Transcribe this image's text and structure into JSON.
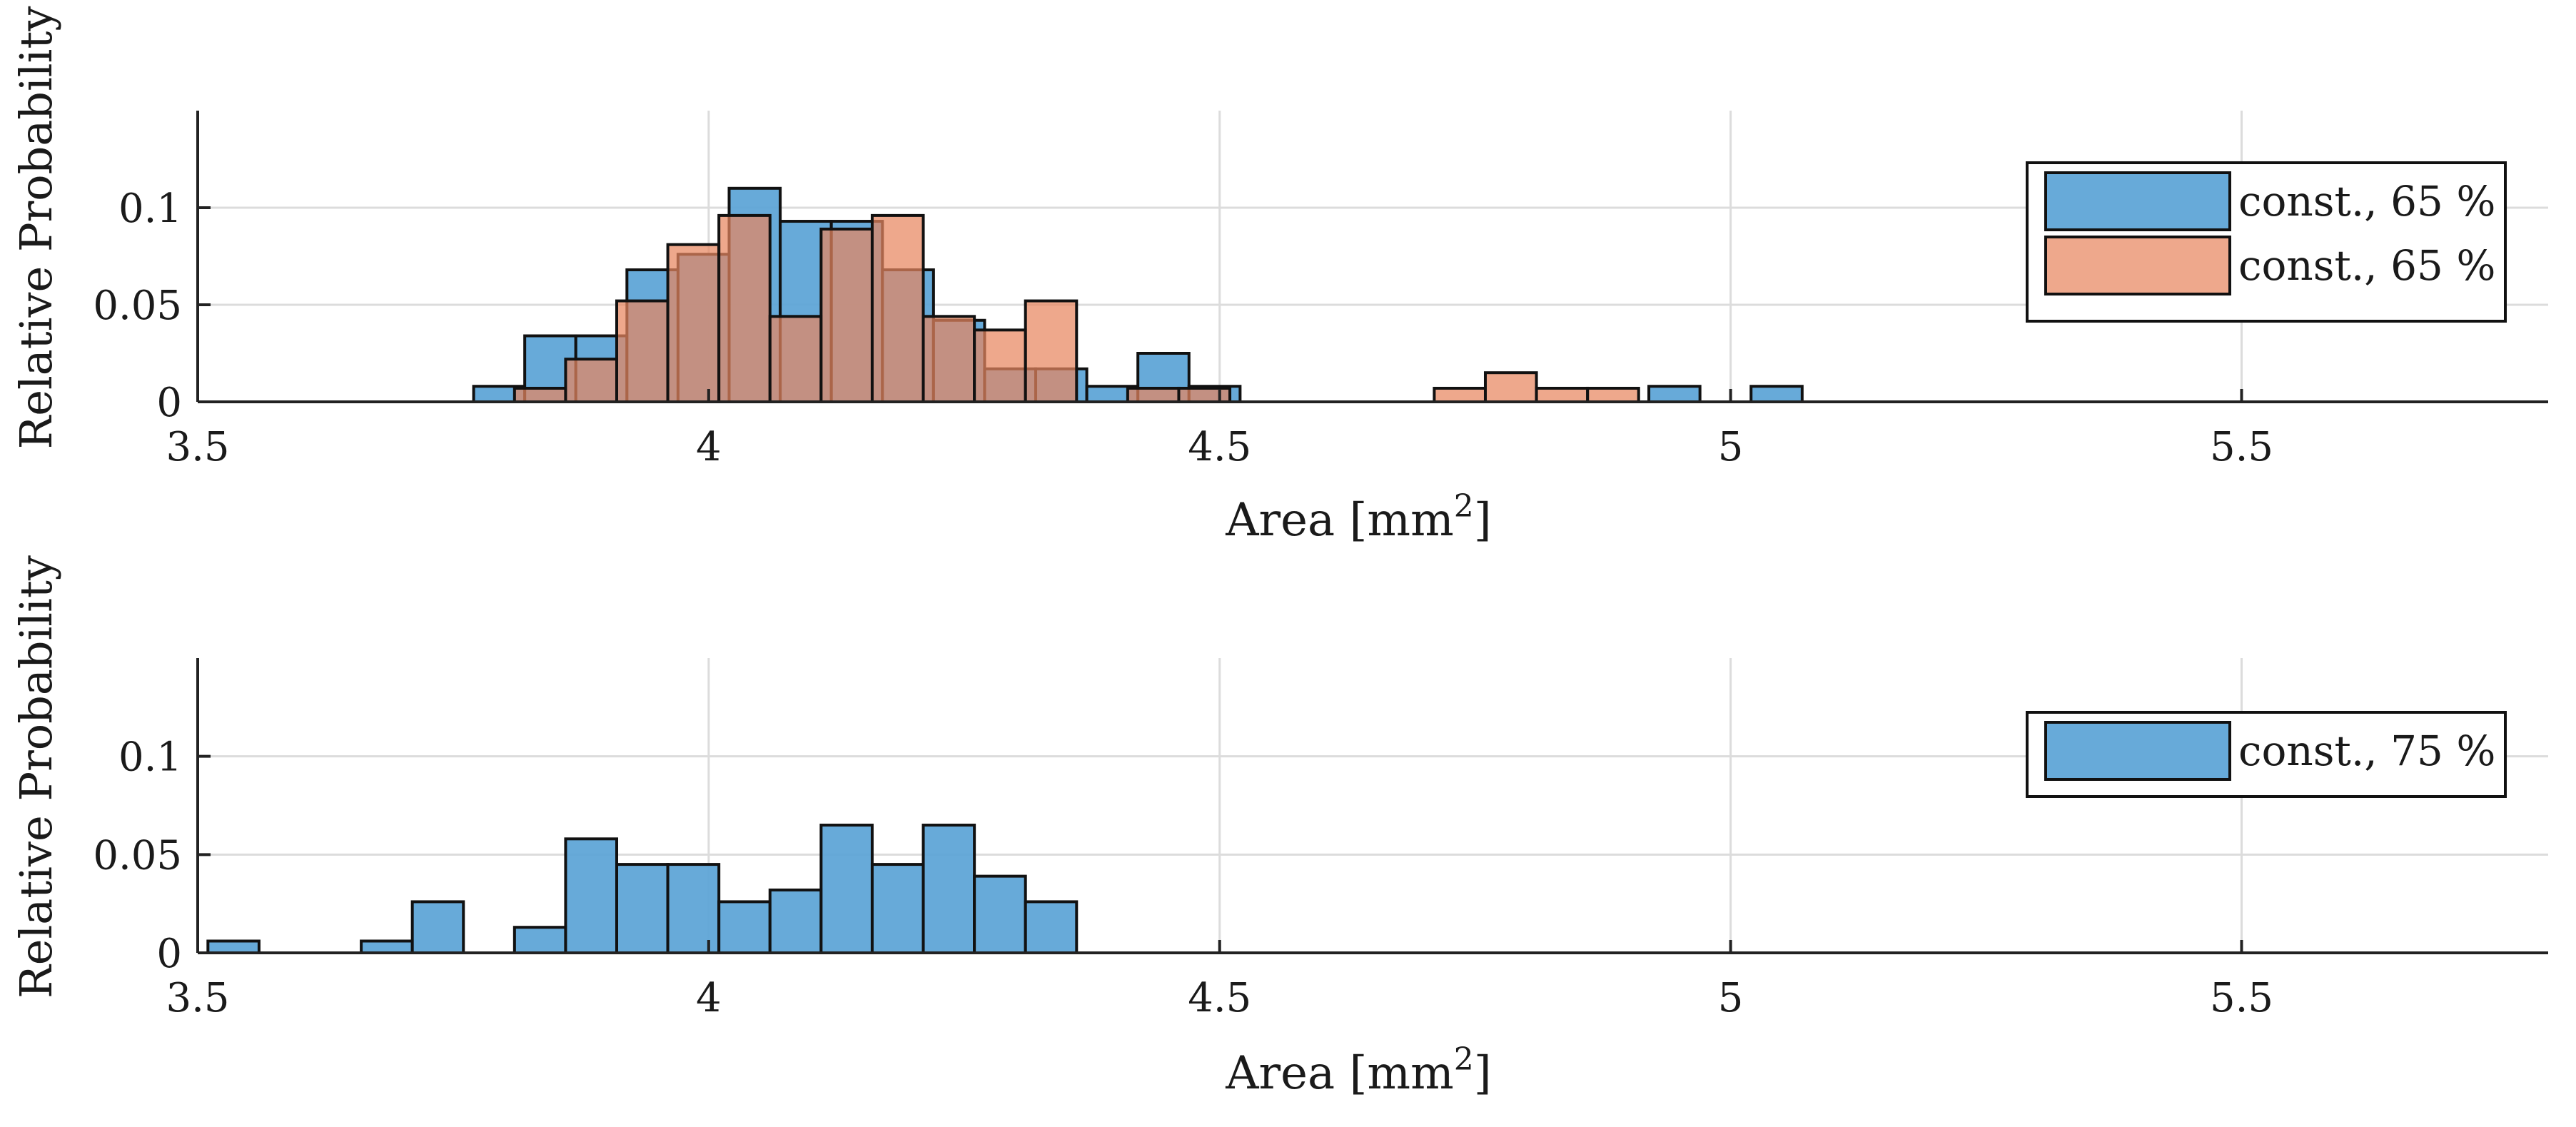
{
  "chart_data": [
    {
      "type": "bar",
      "ylabel": "Relative Probability",
      "xlabel": "Area [mm",
      "xlabel_sup": "2",
      "xlabel_close": "]",
      "xlim": [
        3.5,
        5.8
      ],
      "ylim": [
        0,
        0.15
      ],
      "xticks": [
        "3.5",
        "4",
        "4.5",
        "5",
        "5.5"
      ],
      "yticks": [
        "0",
        "0.05",
        "0.1"
      ],
      "grid": true,
      "legend_position": "top-right",
      "bin_width": 0.05,
      "series": [
        {
          "name": "const., 65 %",
          "color": "#5aa3d6",
          "edges": [
            3.77,
            3.82,
            3.87,
            3.92,
            3.97,
            4.02,
            4.07,
            4.12,
            4.17,
            4.22,
            4.27,
            4.32,
            4.37,
            4.42,
            4.47,
            4.92,
            5.02
          ],
          "values": [
            0.008,
            0.034,
            0.034,
            0.068,
            0.076,
            0.11,
            0.093,
            0.093,
            0.068,
            0.042,
            0.017,
            0.017,
            0.008,
            0.025,
            0.008,
            0.008,
            0.008
          ]
        },
        {
          "name": "const., 65 %",
          "color": "#e8875f",
          "edges": [
            3.81,
            3.86,
            3.91,
            3.96,
            4.01,
            4.06,
            4.11,
            4.16,
            4.21,
            4.26,
            4.31,
            4.41,
            4.46,
            4.71,
            4.76,
            4.81,
            4.86
          ],
          "values": [
            0.007,
            0.022,
            0.052,
            0.081,
            0.096,
            0.044,
            0.089,
            0.096,
            0.044,
            0.037,
            0.052,
            0.007,
            0.007,
            0.007,
            0.015,
            0.007,
            0.007
          ]
        }
      ]
    },
    {
      "type": "bar",
      "ylabel": "Relative Probability",
      "xlabel": "Area [mm",
      "xlabel_sup": "2",
      "xlabel_close": "]",
      "xlim": [
        3.5,
        5.8
      ],
      "ylim": [
        0,
        0.15
      ],
      "xticks": [
        "3.5",
        "4",
        "4.5",
        "5",
        "5.5"
      ],
      "yticks": [
        "0",
        "0.05",
        "0.1"
      ],
      "grid": true,
      "legend_position": "top-right",
      "bin_width": 0.05,
      "series": [
        {
          "name": "const., 75 %",
          "color": "#5aa3d6",
          "edges": [
            3.51,
            3.66,
            3.71,
            3.81,
            3.86,
            3.91,
            3.96,
            4.01,
            4.06,
            4.11,
            4.16,
            4.21,
            4.26,
            4.31
          ],
          "values": [
            0.006,
            0.006,
            0.026,
            0.013,
            0.058,
            0.045,
            0.045,
            0.026,
            0.032,
            0.065,
            0.045,
            0.065,
            0.039,
            0.026
          ]
        }
      ]
    }
  ]
}
